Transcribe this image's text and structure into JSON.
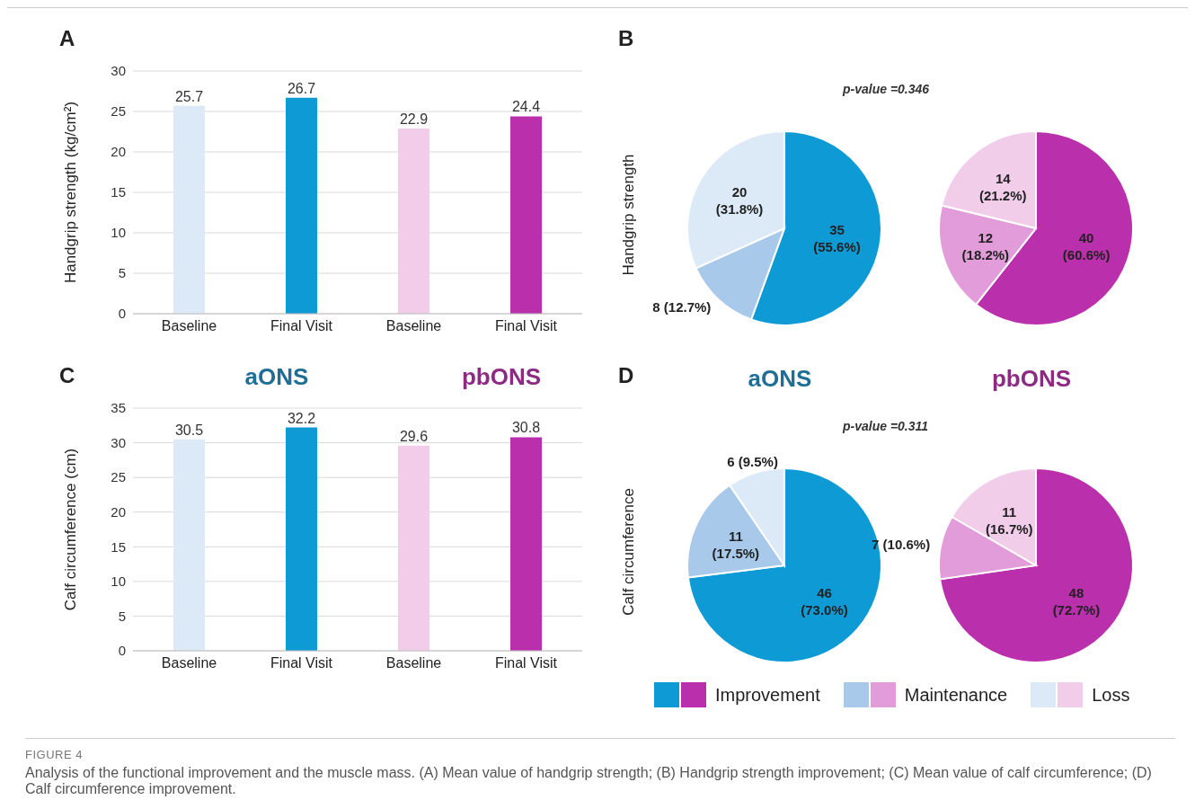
{
  "chart_data": [
    {
      "type": "bar",
      "title": "A",
      "ylabel": "Handgrip strength (kg/cm²)",
      "categories": [
        "Baseline",
        "Final Visit",
        "Baseline",
        "Final Visit"
      ],
      "values": [
        25.7,
        26.7,
        22.9,
        24.4
      ],
      "colors": [
        "#dce9f6",
        "#0e9ad4",
        "#f1cdea",
        "#ba2fab"
      ],
      "ylim": [
        0,
        30
      ],
      "yticks": [
        0,
        5,
        10,
        15,
        20,
        25,
        30
      ],
      "grid": "y",
      "data_labels": true,
      "annotations": [
        "FIGURE 4",
        "Analysis of the functional improvement and the muscle mass. (A) Mean value of handgrip strength; (B) Handgrip strength improvement; (C) Mean value of calf circumference; (D) Calf circumference improvement."
      ]
    },
    {
      "type": "pie",
      "title": "B",
      "ylabel": "Handgrip strength",
      "categories": [
        null,
        null,
        null
      ],
      "annotations": [
        "p-value =0.346"
      ],
      "series": [
        {
          "values": [
            35,
            8,
            20
          ],
          "colors": [
            "#0e9ad4",
            "#a8c9ea",
            "#dce9f6"
          ],
          "value_labels": [
            "35 (55.6%)",
            "8 (12.7%)",
            "20 (31.8%)"
          ]
        },
        {
          "values": [
            40,
            12,
            14
          ],
          "colors": [
            "#ba2fab",
            "#e29cd9",
            "#f1cdea"
          ],
          "value_labels": [
            "40 (60.6%)",
            "12 (18.2%)",
            "14 (21.2%)"
          ]
        }
      ]
    },
    {
      "type": "bar",
      "title": "C",
      "ylabel": "Calf circumference (cm)",
      "categories": [
        "Baseline",
        "Final Visit",
        "Baseline",
        "Final Visit"
      ],
      "values": [
        30.5,
        32.2,
        29.6,
        30.8
      ],
      "colors": [
        "#dce9f6",
        "#0e9ad4",
        "#f1cdea",
        "#ba2fab"
      ],
      "ylim": [
        0,
        35
      ],
      "yticks": [
        0,
        5,
        10,
        15,
        20,
        25,
        30,
        35
      ],
      "grid": "y",
      "data_labels": true,
      "annotations": [
        "aONS",
        "pbONS"
      ]
    },
    {
      "type": "pie",
      "title": "D",
      "ylabel": "Calf circumference",
      "categories": [
        "Improvement",
        "Maintenance",
        "Loss"
      ],
      "annotations": [
        "p-value =0.311"
      ],
      "legend": "bottom",
      "series": [
        {
          "name": "aONS",
          "values": [
            46,
            11,
            6
          ],
          "colors": [
            "#0e9ad4",
            "#a8c9ea",
            "#dce9f6"
          ],
          "value_labels": [
            "46 (73.0%)",
            "11 (17.5%)",
            "6 (9.5%)"
          ]
        },
        {
          "name": "pbONS",
          "values": [
            48,
            7,
            11
          ],
          "colors": [
            "#ba2fab",
            "#e29cd9",
            "#f1cdea"
          ],
          "value_labels": [
            "48 (72.7%)",
            "7 (10.6%)",
            "11 (16.7%)"
          ]
        }
      ]
    }
  ]
}
